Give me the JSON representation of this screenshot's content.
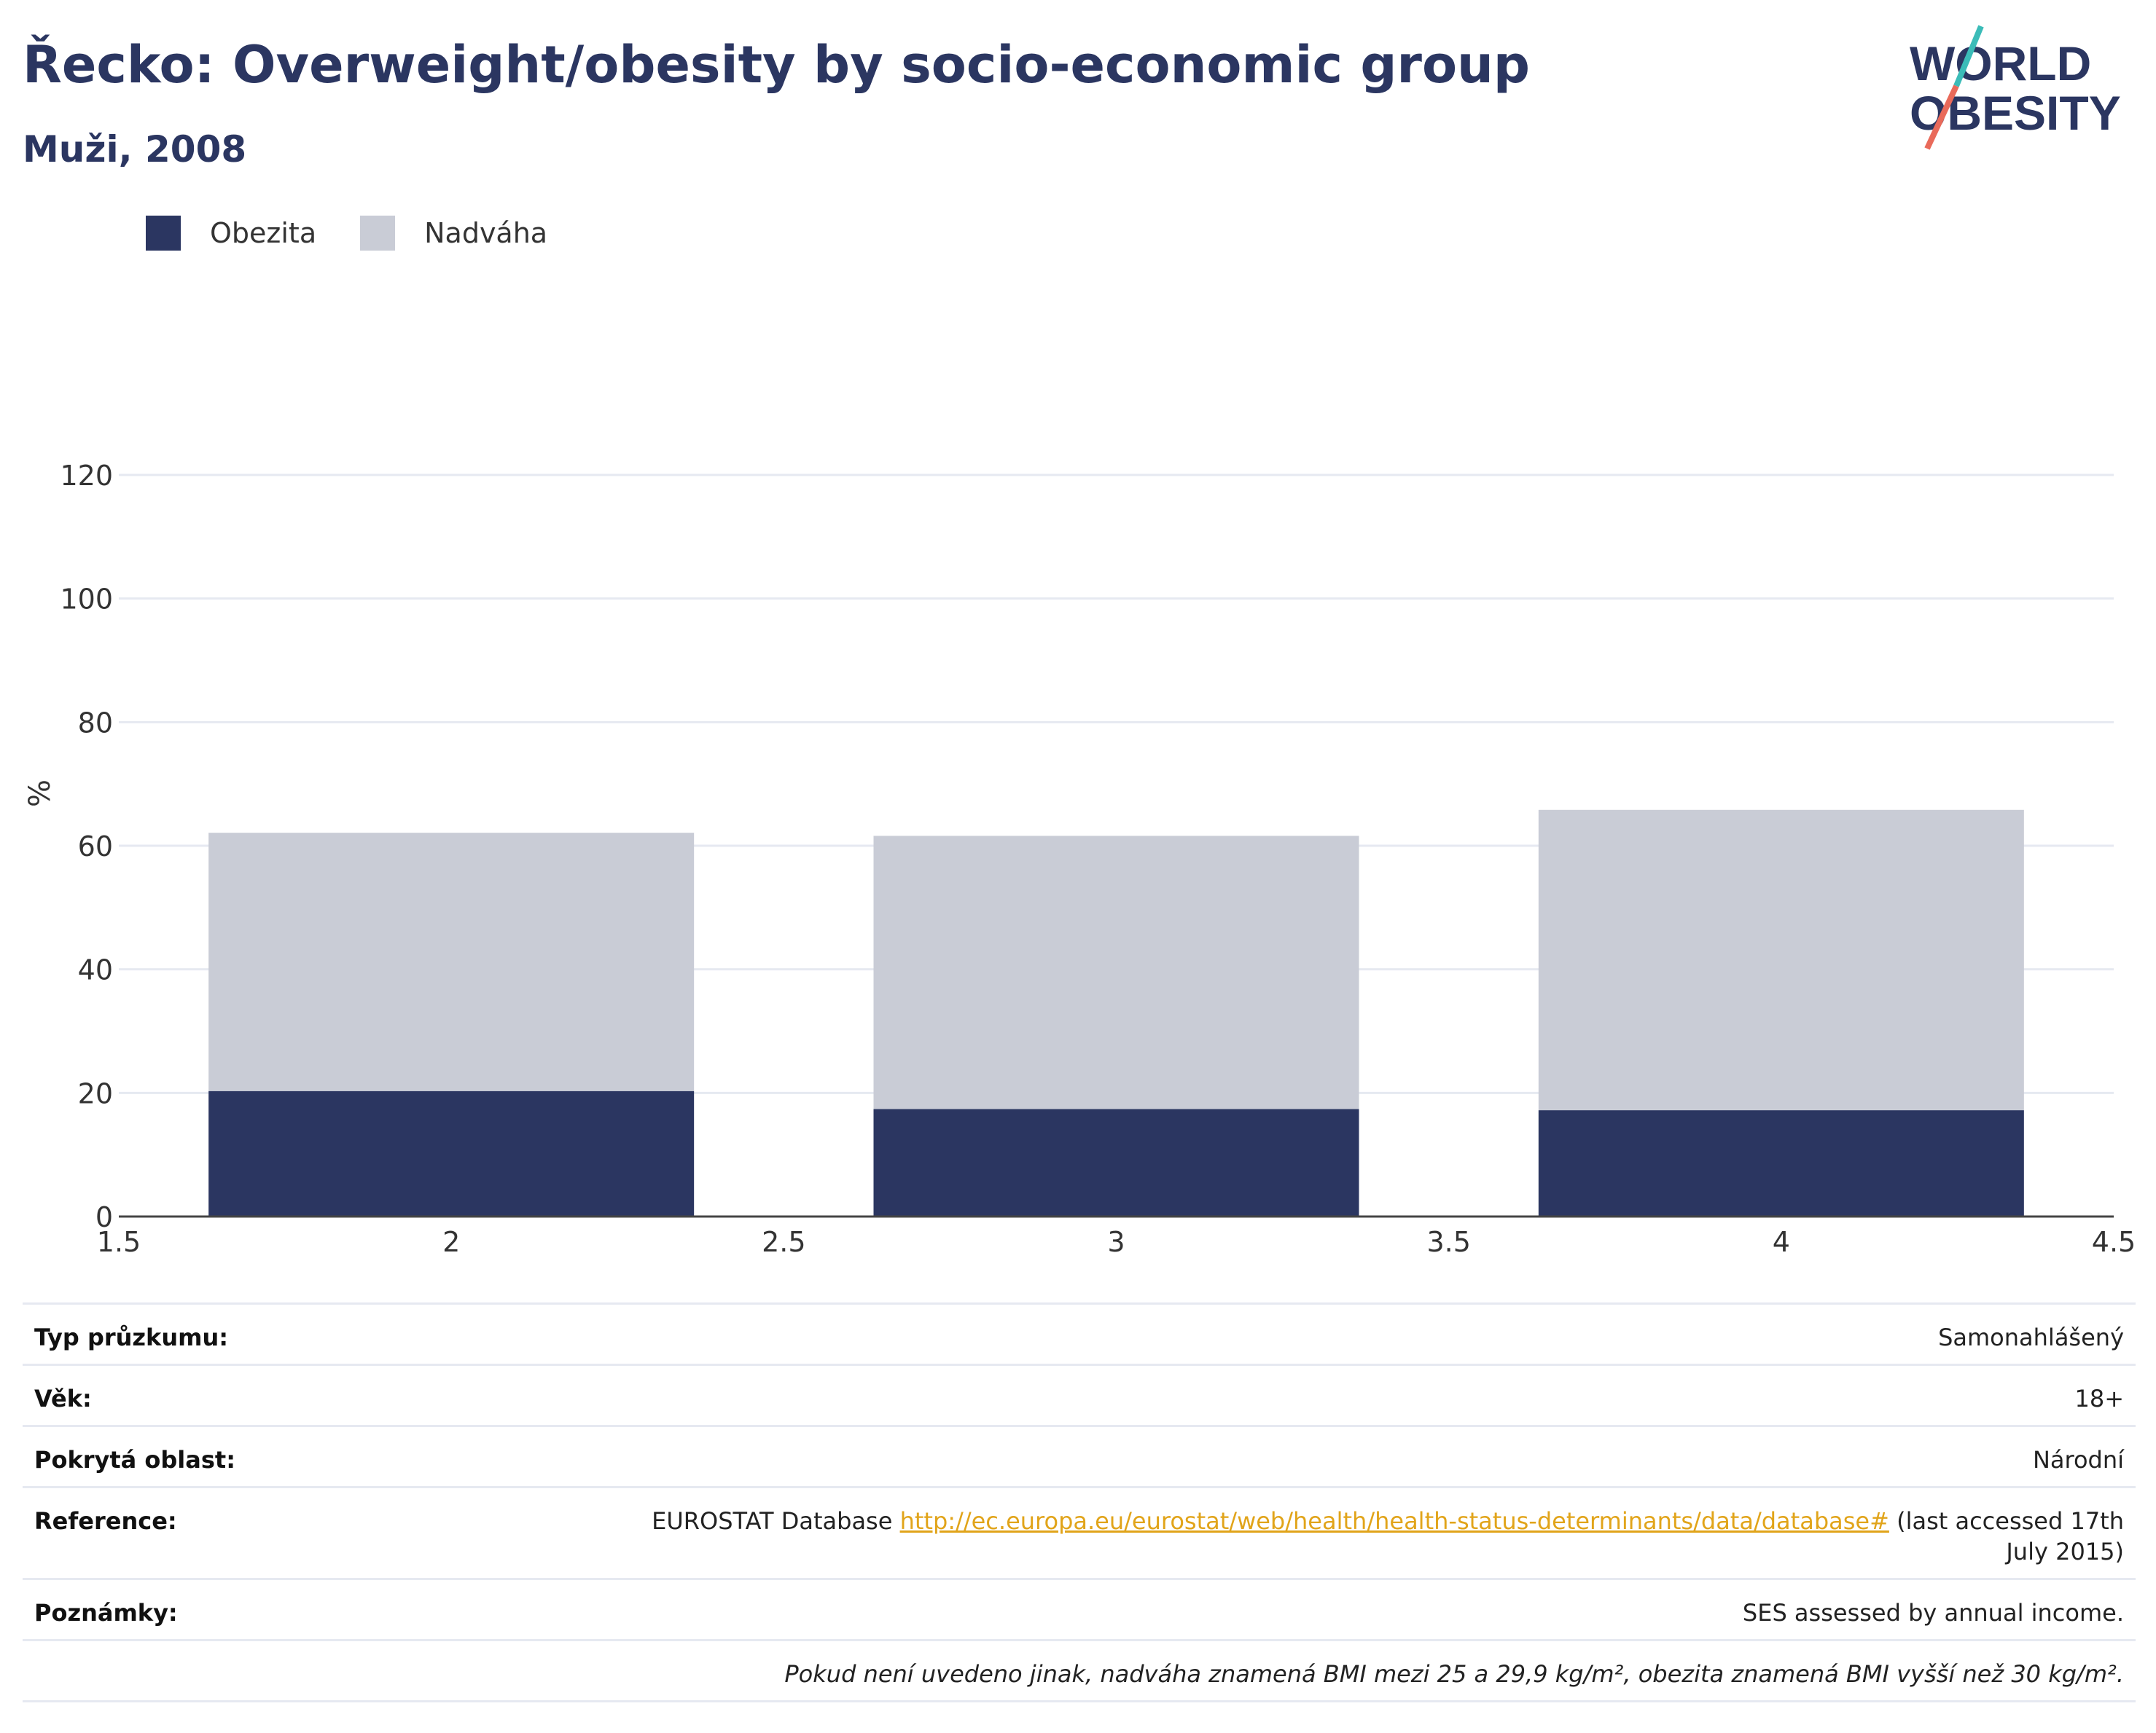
{
  "header": {
    "title": "Řecko: Overweight/obesity by socio-economic group",
    "subtitle": "Muži, 2008"
  },
  "logo": {
    "line1": "WORLD",
    "line2": "OBESITY"
  },
  "legend": {
    "items": [
      {
        "label": "Obezita",
        "color": "#2b3661"
      },
      {
        "label": "Nadváha",
        "color": "#c9ccd6"
      }
    ]
  },
  "chart_data": {
    "type": "bar",
    "stacked": true,
    "x": [
      2,
      3,
      4
    ],
    "series": [
      {
        "name": "Obezita",
        "color": "#2b3661",
        "values": [
          20.3,
          17.4,
          17.2
        ]
      },
      {
        "name": "Nadváha",
        "color": "#c9ccd6",
        "values": [
          41.8,
          44.2,
          48.6
        ]
      }
    ],
    "xlim": [
      1.5,
      4.5
    ],
    "ylim": [
      0,
      120
    ],
    "xticks": [
      "1.5",
      "2",
      "2.5",
      "3",
      "3.5",
      "4",
      "4.5"
    ],
    "yticks": [
      "0",
      "20",
      "40",
      "60",
      "80",
      "100",
      "120"
    ],
    "ylabel": "%",
    "xlabel": "",
    "grid": true,
    "legend_position": "top-left"
  },
  "info": {
    "survey_type": {
      "key": "Typ průzkumu:",
      "value": "Samonahlášený"
    },
    "age": {
      "key": "Věk:",
      "value": "18+"
    },
    "coverage": {
      "key": "Pokrytá oblast:",
      "value": "Národní"
    },
    "reference": {
      "key": "Reference:",
      "prefix": "EUROSTAT Database ",
      "link": "http://ec.europa.eu/eurostat/web/health/health-status-determinants/data/database#",
      "suffix": " (last accessed 17th July 2015)"
    },
    "notes": {
      "key": "Poznámky:",
      "value": "SES assessed by annual income."
    },
    "footnote": "Pokud není uvedeno jinak, nadváha znamená BMI mezi 25 a 29,9 kg/m², obezita znamená BMI vyšší než 30 kg/m²."
  }
}
